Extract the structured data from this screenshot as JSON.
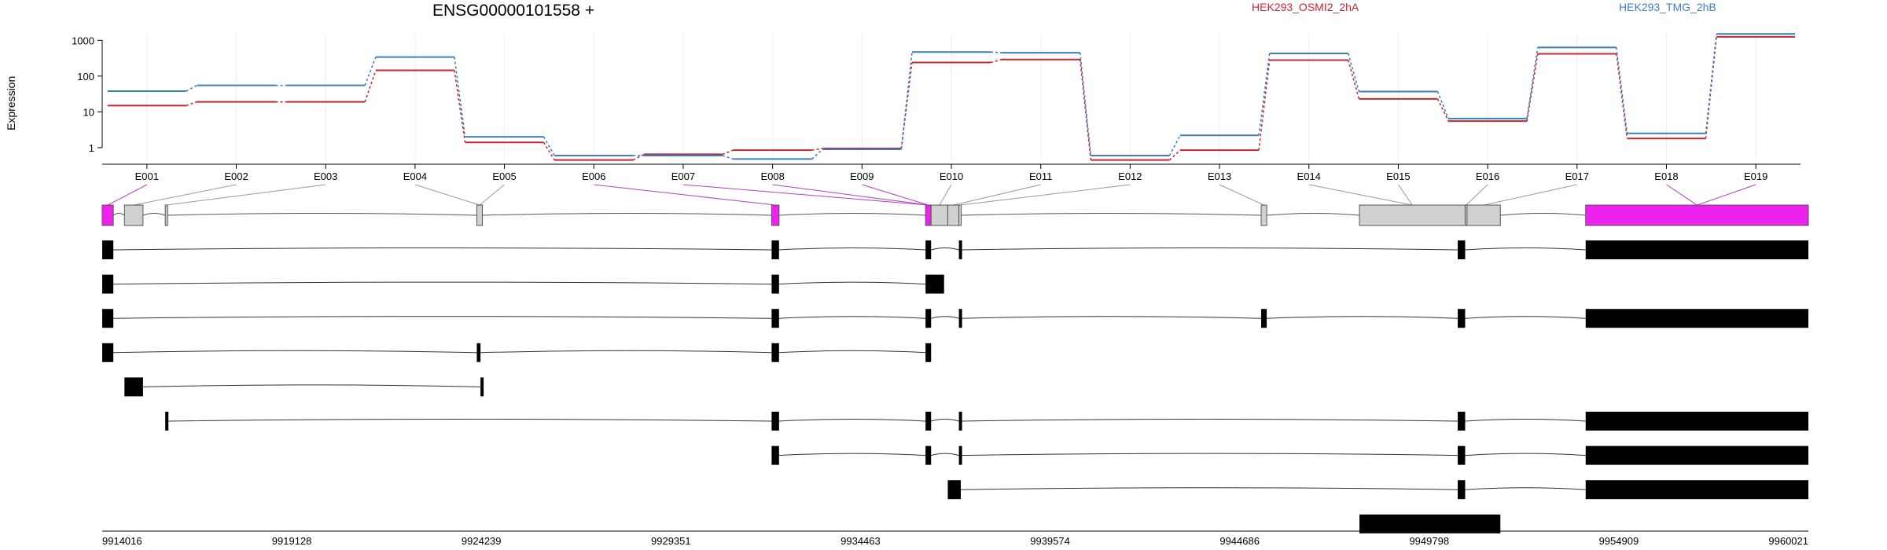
{
  "title": "ENSG00000101558 +",
  "ylabel": "Expression",
  "legend": [
    {
      "name": "HEK293_OSMI2_2hA",
      "color": "#c62833"
    },
    {
      "name": "HEK293_TMG_2hB",
      "color": "#3b7fc0"
    }
  ],
  "chart_data": {
    "type": "line",
    "yscale": "log10",
    "yticks": [
      "1",
      "10",
      "100",
      "1000"
    ],
    "ytick_values": [
      1,
      10,
      100,
      1000
    ],
    "categories": [
      "E001",
      "E002",
      "E003",
      "E004",
      "E005",
      "E006",
      "E007",
      "E008",
      "E009",
      "E010",
      "E011",
      "E012",
      "E013",
      "E014",
      "E015",
      "E016",
      "E017",
      "E018",
      "E019"
    ],
    "series": [
      {
        "name": "HEK293_OSMI2_2hA",
        "color": "#c62833",
        "values": [
          15,
          19,
          19,
          145,
          1.4,
          0.45,
          0.65,
          0.85,
          0.95,
          240,
          290,
          0.45,
          0.85,
          280,
          23,
          5.5,
          420,
          1.8,
          1250
        ]
      },
      {
        "name": "HEK293_TMG_2hB",
        "color": "#3b7fc0",
        "values": [
          38,
          55,
          55,
          340,
          2.0,
          0.6,
          0.6,
          0.48,
          0.9,
          470,
          450,
          0.6,
          2.2,
          430,
          37,
          6.5,
          630,
          2.5,
          1500
        ]
      }
    ]
  },
  "gene_model": {
    "start": 9914016,
    "end": 9960021,
    "coord_ticks": [
      "9914016",
      "9919128",
      "9924239",
      "9929351",
      "9934463",
      "9939574",
      "9944686",
      "9949798",
      "9954909",
      "9960021"
    ],
    "exons": [
      {
        "s": 9914016,
        "e": 9914316,
        "hl": true
      },
      {
        "s": 9914616,
        "e": 9915116,
        "hl": false
      },
      {
        "s": 9915716,
        "e": 9915766,
        "hl": false
      },
      {
        "s": 9924116,
        "e": 9924266,
        "hl": false
      },
      {
        "s": 9932066,
        "e": 9932266,
        "hl": true
      },
      {
        "s": 9936216,
        "e": 9936366,
        "hl": true
      },
      {
        "s": 9936366,
        "e": 9936816,
        "hl": false
      },
      {
        "s": 9936816,
        "e": 9937116,
        "hl": false
      },
      {
        "s": 9937116,
        "e": 9937166,
        "hl": false
      },
      {
        "s": 9945266,
        "e": 9945416,
        "hl": false
      },
      {
        "s": 9947916,
        "e": 9950766,
        "hl": false
      },
      {
        "s": 9950766,
        "e": 9950816,
        "hl": false
      },
      {
        "s": 9950816,
        "e": 9951716,
        "hl": false
      },
      {
        "s": 9954016,
        "e": 9960021,
        "hl": true
      }
    ],
    "transcripts": [
      {
        "blocks": [
          [
            9914016,
            9914316
          ],
          [
            9932066,
            9932266
          ],
          [
            9936216,
            9936366
          ],
          [
            9937116,
            9937166
          ],
          [
            9950566,
            9950766
          ],
          [
            9954016,
            9960021
          ]
        ]
      },
      {
        "blocks": [
          [
            9914016,
            9914316
          ],
          [
            9932066,
            9932266
          ],
          [
            9936216,
            9936716
          ]
        ]
      },
      {
        "blocks": [
          [
            9914016,
            9914316
          ],
          [
            9932066,
            9932266
          ],
          [
            9936216,
            9936366
          ],
          [
            9937116,
            9937166
          ],
          [
            9945266,
            9945416
          ],
          [
            9950566,
            9950766
          ],
          [
            9954016,
            9960021
          ]
        ]
      },
      {
        "blocks": [
          [
            9914016,
            9914316
          ],
          [
            9924116,
            9924216
          ],
          [
            9932066,
            9932266
          ],
          [
            9936216,
            9936366
          ]
        ]
      },
      {
        "blocks": [
          [
            9914616,
            9915116
          ],
          [
            9924216,
            9924266
          ]
        ]
      },
      {
        "blocks": [
          [
            9915716,
            9915766
          ],
          [
            9932066,
            9932266
          ],
          [
            9936216,
            9936366
          ],
          [
            9937116,
            9937166
          ],
          [
            9950566,
            9950766
          ],
          [
            9954016,
            9960021
          ]
        ]
      },
      {
        "blocks": [
          [
            9932066,
            9932266
          ],
          [
            9936216,
            9936366
          ],
          [
            9937116,
            9937166
          ],
          [
            9950566,
            9950766
          ],
          [
            9954016,
            9960021
          ]
        ]
      },
      {
        "blocks": [
          [
            9936816,
            9937166
          ],
          [
            9950566,
            9950766
          ],
          [
            9954016,
            9960021
          ]
        ]
      },
      {
        "blocks": [
          [
            9947916,
            9951716
          ]
        ]
      }
    ]
  }
}
